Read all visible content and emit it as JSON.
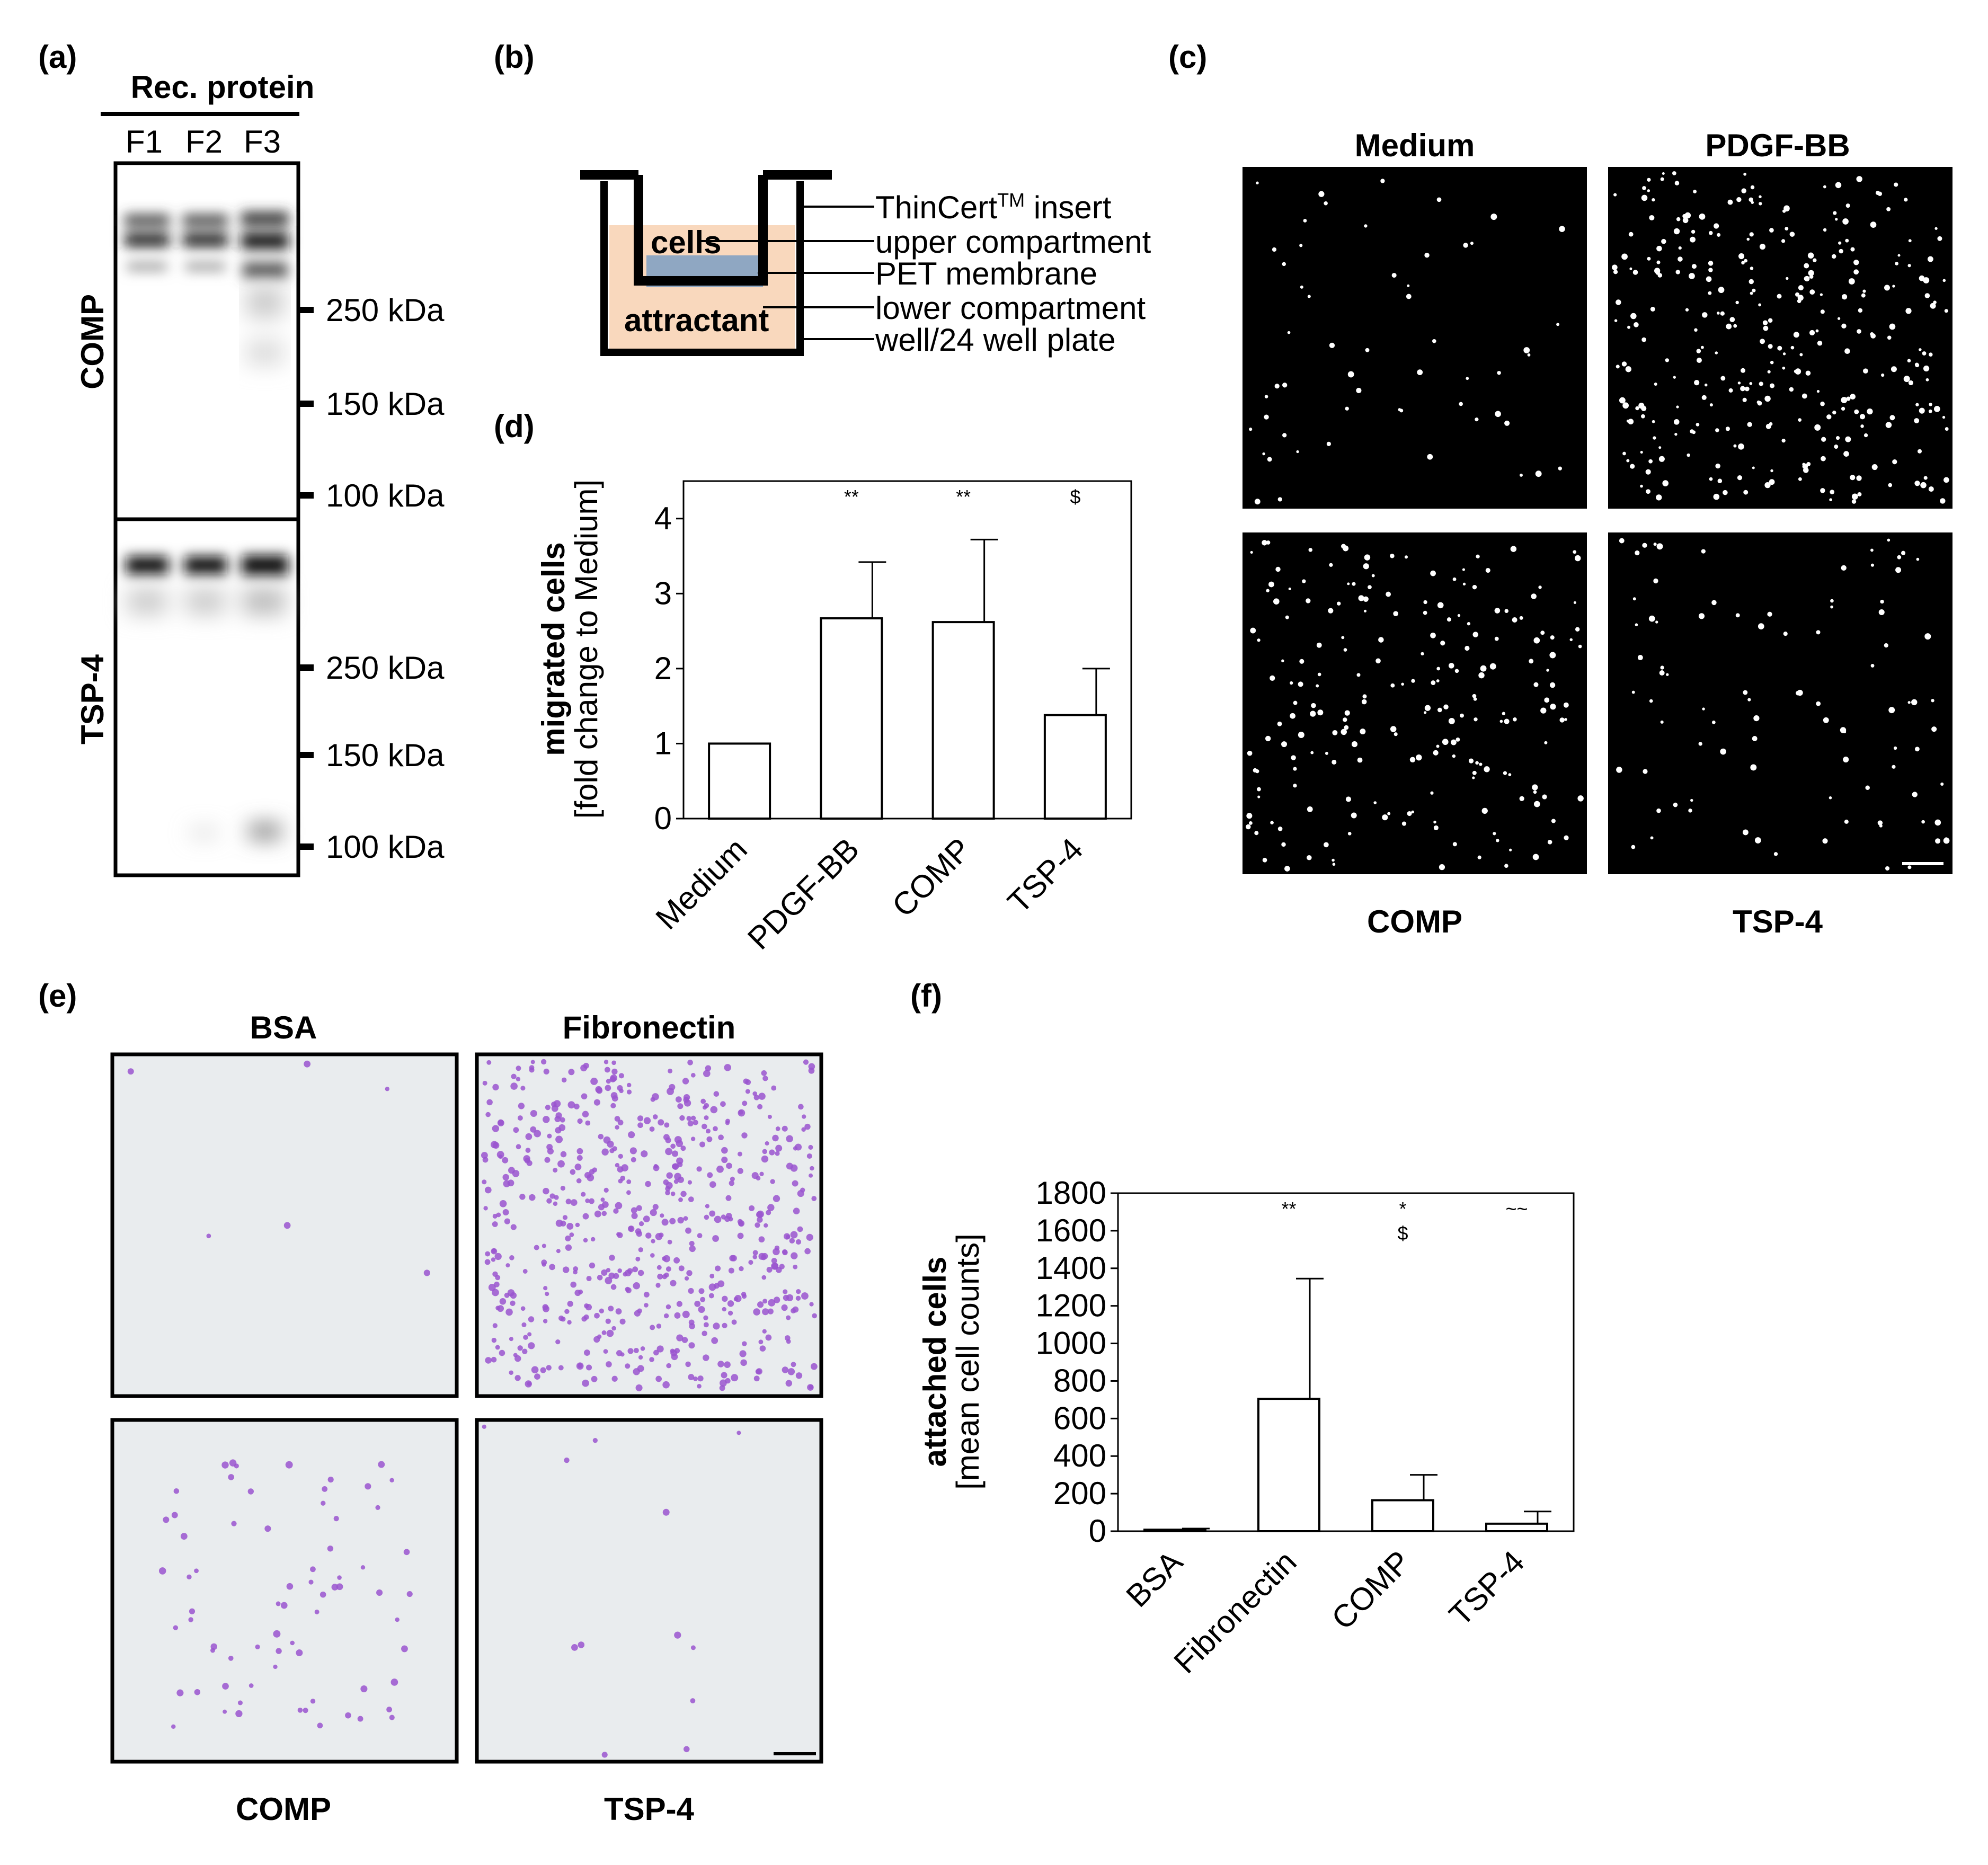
{
  "panels": {
    "a": {
      "label": "(a)",
      "header": "Rec. protein",
      "lanes": [
        "F1",
        "F2",
        "F3"
      ],
      "blots": [
        "COMP",
        "TSP-4"
      ],
      "markers": [
        "250 kDa",
        "150 kDa",
        "100 kDa"
      ]
    },
    "b": {
      "label": "(b)",
      "cells": "cells",
      "attractant": "attractant",
      "insert": "ThinCert",
      "insert_sup": "TM",
      "insert_tail": " insert",
      "upper": "upper compartment",
      "membrane": "PET membrane",
      "lower": "lower compartment",
      "well": "well/24 well plate"
    },
    "c": {
      "label": "(c)",
      "titles_top": [
        "Medium",
        "PDGF-BB"
      ],
      "titles_bottom": [
        "COMP",
        "TSP-4"
      ]
    },
    "e": {
      "label": "(e)",
      "titles_top": [
        "BSA",
        "Fibronectin"
      ],
      "titles_bottom": [
        "COMP",
        "TSP-4"
      ]
    },
    "d": {
      "label": "(d)"
    },
    "f": {
      "label": "(f)"
    }
  },
  "chart_data": [
    {
      "id": "d",
      "type": "bar",
      "categories": [
        "Medium",
        "PDGF-BB",
        "COMP",
        "TSP-4"
      ],
      "values": [
        1.0,
        2.67,
        2.62,
        1.38
      ],
      "errors": [
        0,
        0.75,
        1.1,
        0.62
      ],
      "significance": [
        "",
        "**",
        "**",
        "$"
      ],
      "ylabel": "migrated cells",
      "ylabel2": "[fold change to Medium]",
      "ylim": [
        0,
        4.5
      ],
      "yticks": [
        0,
        1,
        2,
        3,
        4
      ],
      "grid": false
    },
    {
      "id": "f",
      "type": "bar",
      "categories": [
        "BSA",
        "Fibronectin",
        "COMP",
        "TSP-4"
      ],
      "values": [
        8,
        705,
        165,
        40
      ],
      "errors": [
        6,
        640,
        135,
        65
      ],
      "significance": [
        "",
        "**",
        "*",
        "~~"
      ],
      "significance2": [
        "",
        "",
        "$",
        ""
      ],
      "ylabel": "attached cells",
      "ylabel2": "[mean cell counts]",
      "ylim": [
        0,
        1800
      ],
      "yticks": [
        0,
        200,
        400,
        600,
        800,
        1000,
        1200,
        1400,
        1600,
        1800
      ],
      "grid": false
    }
  ],
  "colors": {
    "buffer": "#f9d8bd",
    "membrane": "#8fa7c2",
    "stain_bg": "#e9ecee",
    "stain_cell": "#9a55cf",
    "fluor_cell": "#ffffff"
  }
}
